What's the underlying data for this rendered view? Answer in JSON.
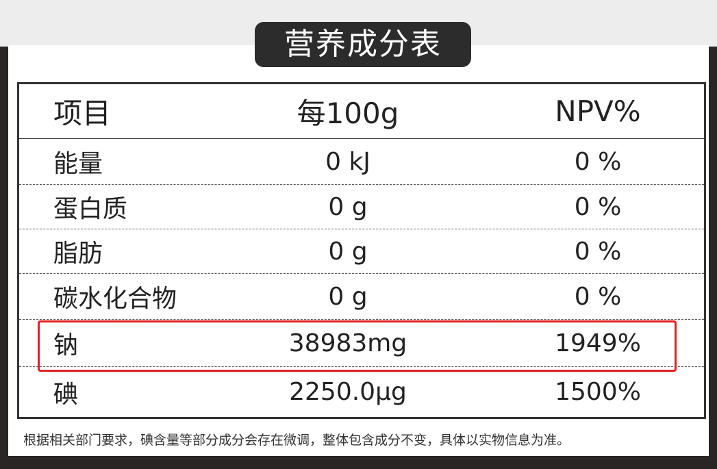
{
  "title": "营养成分表",
  "table": {
    "headers": [
      "项目",
      "每100g",
      "NPV%"
    ],
    "rows": [
      {
        "item": "能量",
        "per100g": "0 kJ",
        "npv": "0 %"
      },
      {
        "item": "蛋白质",
        "per100g": "0 g",
        "npv": "0 %"
      },
      {
        "item": "脂肪",
        "per100g": "0 g",
        "npv": "0 %"
      },
      {
        "item": "碳水化合物",
        "per100g": "0 g",
        "npv": "0 %"
      },
      {
        "item": "钠",
        "per100g": "38983mg",
        "npv": "1949%",
        "highlighted": true
      },
      {
        "item": "碘",
        "per100g": "2250.0μg",
        "npv": "1500%"
      }
    ]
  },
  "highlight_color": "#e02020",
  "footnote": "根据相关部门要求，碘含量等部分成分会存在微调，整体包含成分不变，具体以实物信息为准。"
}
